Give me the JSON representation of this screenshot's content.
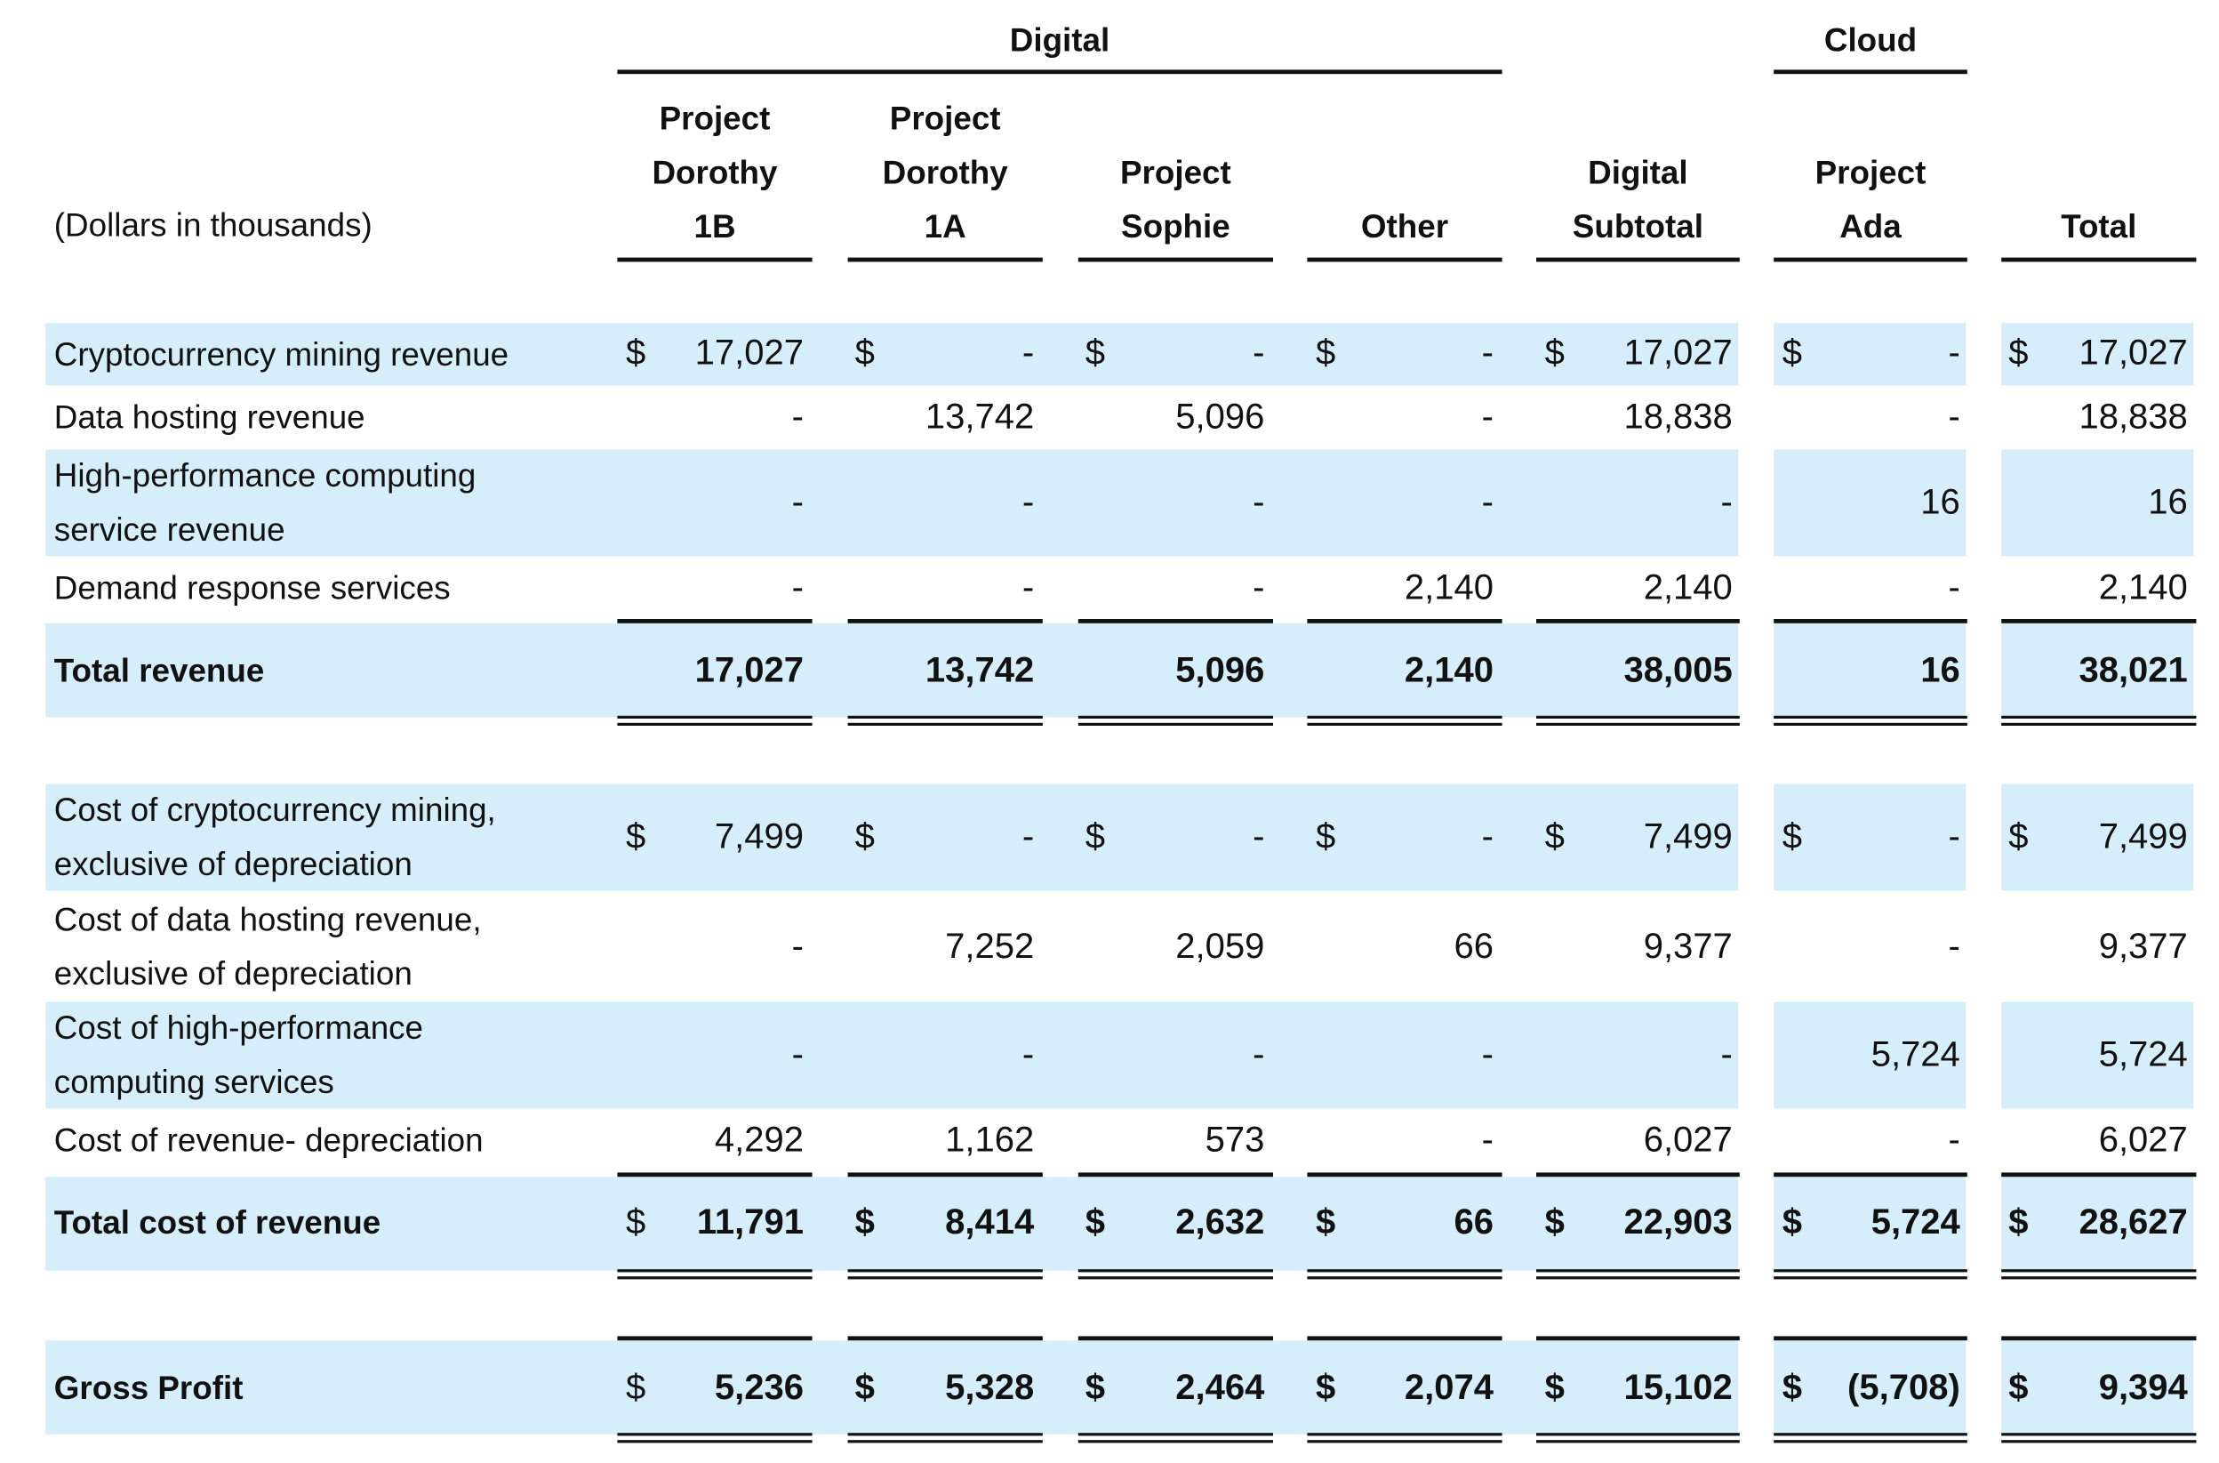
{
  "unit_label": "(Dollars in thousands)",
  "groups": {
    "digital": "Digital",
    "cloud": "Cloud"
  },
  "columns": [
    {
      "l1": "Project",
      "l2": "Dorothy",
      "l3": "1B"
    },
    {
      "l1": "Project",
      "l2": "Dorothy",
      "l3": "1A"
    },
    {
      "l1": "",
      "l2": "Project",
      "l3": "Sophie"
    },
    {
      "l1": "",
      "l2": "",
      "l3": "Other"
    },
    {
      "l1": "",
      "l2": "Digital",
      "l3": "Subtotal"
    },
    {
      "l1": "",
      "l2": "Project",
      "l3": "Ada"
    },
    {
      "l1": "",
      "l2": "",
      "l3": "Total"
    }
  ],
  "currency_symbol": "$",
  "rows": [
    {
      "l1": "Cryptocurrency mining revenue",
      "l2": "",
      "values": [
        "17,027",
        "-",
        "-",
        "-",
        "17,027",
        "-",
        "17,027"
      ]
    },
    {
      "l1": "Data hosting revenue",
      "l2": "",
      "values": [
        "-",
        "13,742",
        "5,096",
        "-",
        "18,838",
        "-",
        "18,838"
      ]
    },
    {
      "l1": "High-performance computing",
      "l2": "service revenue",
      "values": [
        "-",
        "-",
        "-",
        "-",
        "-",
        "16",
        "16"
      ]
    },
    {
      "l1": "Demand response services",
      "l2": "",
      "values": [
        "-",
        "-",
        "-",
        "2,140",
        "2,140",
        "-",
        "2,140"
      ]
    },
    {
      "l1": "Total revenue",
      "l2": "",
      "values": [
        "17,027",
        "13,742",
        "5,096",
        "2,140",
        "38,005",
        "16",
        "38,021"
      ]
    },
    {
      "l1": "Cost of cryptocurrency mining,",
      "l2": "exclusive of depreciation",
      "values": [
        "7,499",
        "-",
        "-",
        "-",
        "7,499",
        "-",
        "7,499"
      ]
    },
    {
      "l1": "Cost of data hosting revenue,",
      "l2": "exclusive of depreciation",
      "values": [
        "-",
        "7,252",
        "2,059",
        "66",
        "9,377",
        "-",
        "9,377"
      ]
    },
    {
      "l1": "Cost of high-performance",
      "l2": "computing services",
      "values": [
        "-",
        "-",
        "-",
        "-",
        "-",
        "5,724",
        "5,724"
      ]
    },
    {
      "l1": "Cost of revenue- depreciation",
      "l2": "",
      "values": [
        "4,292",
        "1,162",
        "573",
        "-",
        "6,027",
        "-",
        "6,027"
      ]
    },
    {
      "l1": "Total cost of revenue",
      "l2": "",
      "values": [
        "11,791",
        "8,414",
        "2,632",
        "66",
        "22,903",
        "5,724",
        "28,627"
      ]
    },
    {
      "l1": "Gross Profit",
      "l2": "",
      "values": [
        "5,236",
        "5,328",
        "2,464",
        "2,074",
        "15,102",
        "(5,708)",
        "9,394"
      ]
    }
  ]
}
